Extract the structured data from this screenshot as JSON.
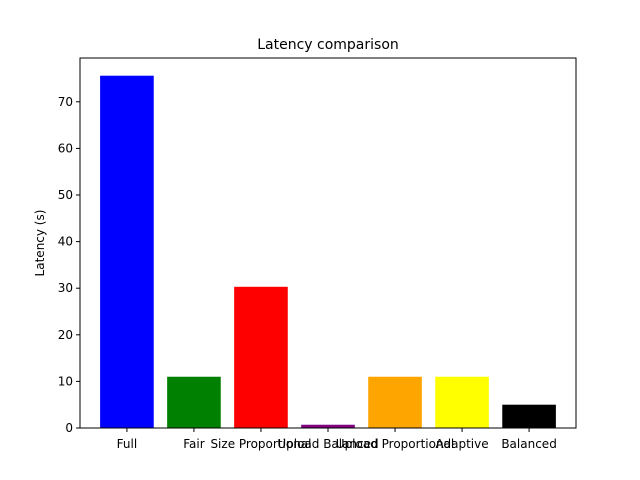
{
  "chart_data": {
    "type": "bar",
    "title": "Latency comparison",
    "xlabel": "",
    "ylabel": "Latency (s)",
    "ylim": [
      0,
      79.4
    ],
    "yticks": [
      0,
      10,
      20,
      30,
      40,
      50,
      60,
      70
    ],
    "grid": false,
    "categories": [
      "Full",
      "Fair",
      "Size Proportional",
      "Upload Balanced",
      "Upload Proportional",
      "Adaptive",
      "Balanced"
    ],
    "values": [
      75.6,
      11.0,
      30.3,
      0.7,
      11.0,
      11.0,
      5.0
    ],
    "colors": [
      "#0000ff",
      "#008000",
      "#ff0000",
      "#800080",
      "#ffa500",
      "#ffff00",
      "#000000"
    ]
  }
}
